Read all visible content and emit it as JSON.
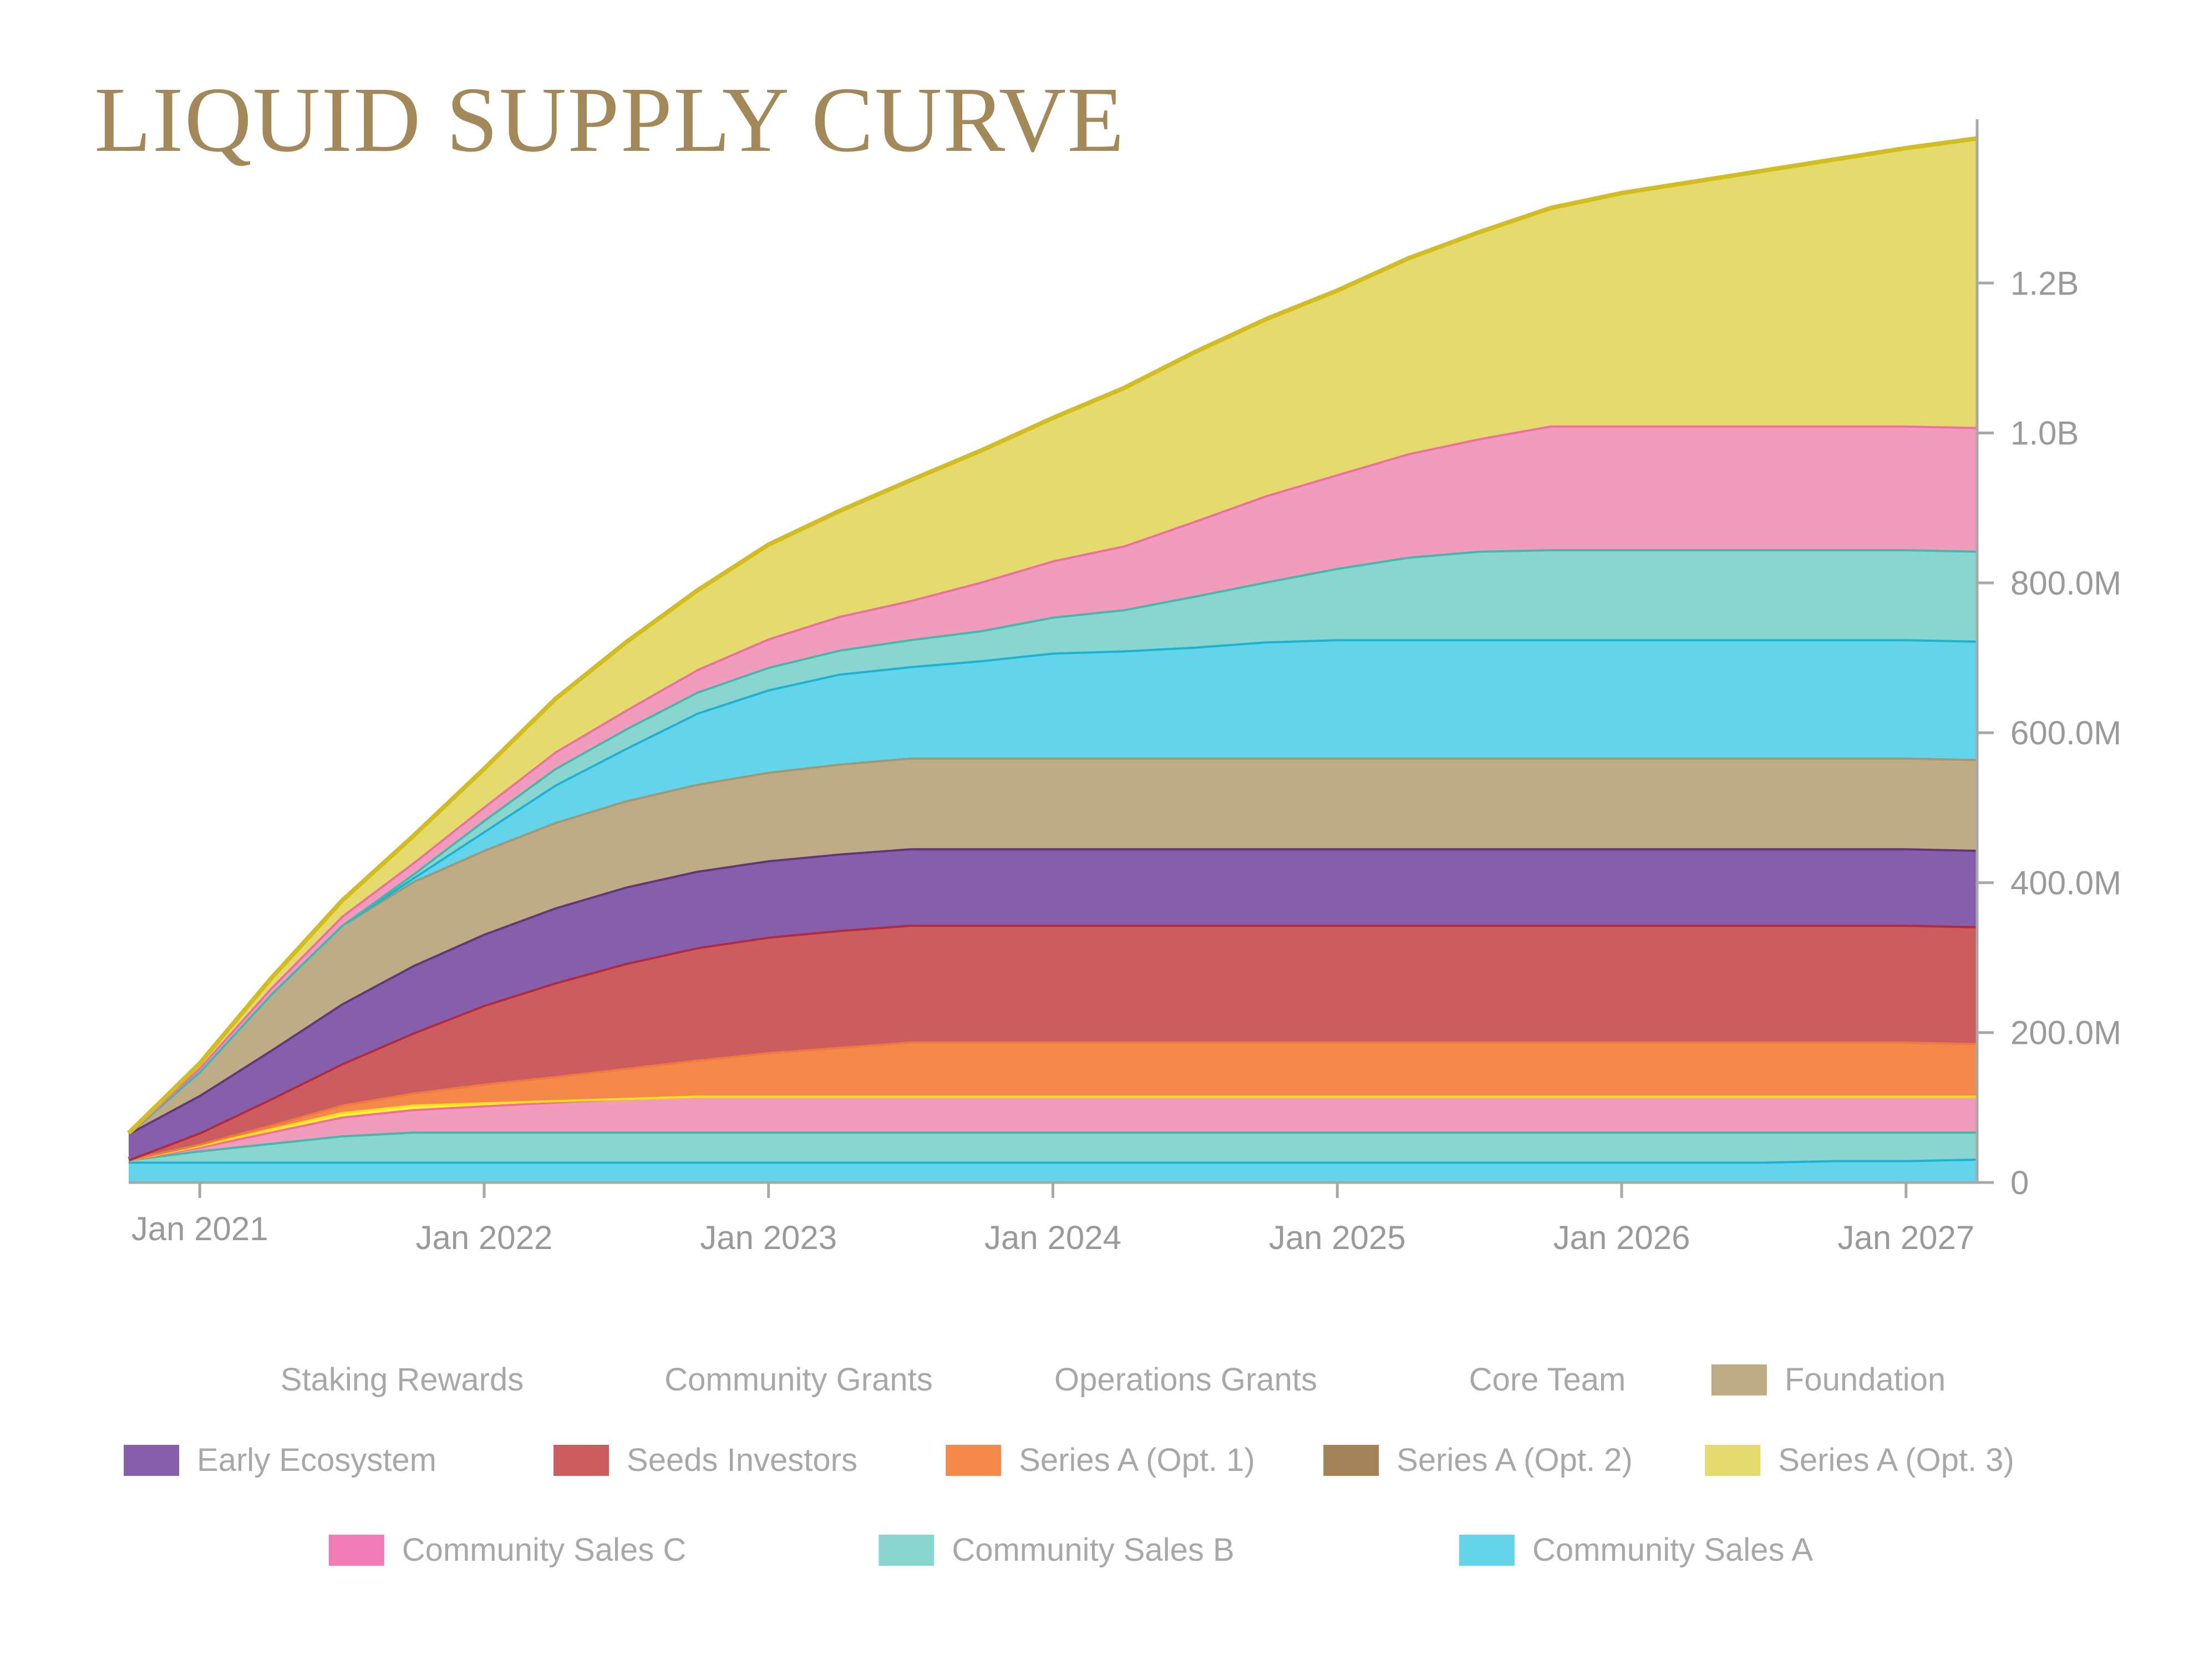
{
  "chart_data": {
    "type": "area",
    "stacked": true,
    "title": "LIQUID SUPPLY CURVE",
    "xlabel": "",
    "ylabel": "",
    "x_ticks": [
      "Jan 2021",
      "Jan 2022",
      "Jan 2023",
      "Jan 2024",
      "Jan 2025",
      "Jan 2026",
      "Jan 2027"
    ],
    "y_ticks": [
      "0",
      "200.0M",
      "400.0M",
      "600.0M",
      "800.0M",
      "1.0B",
      "1.2B"
    ],
    "ylim": [
      0,
      1400
    ],
    "y_unit": "M",
    "x": [
      "2020-10",
      "2021-01",
      "2021-04",
      "2021-07",
      "2021-10",
      "2022-01",
      "2022-04",
      "2022-07",
      "2022-10",
      "2023-01",
      "2023-04",
      "2023-07",
      "2023-10",
      "2024-01",
      "2024-04",
      "2024-07",
      "2024-10",
      "2025-01",
      "2025-04",
      "2025-07",
      "2025-10",
      "2026-01",
      "2026-04",
      "2026-07",
      "2026-10",
      "2027-01",
      "2027-04"
    ],
    "series": [
      {
        "name": "Community Sales A",
        "color": "#63d4ea",
        "line": "#1ab3d6",
        "values": [
          28,
          28,
          28,
          28,
          28,
          28,
          28,
          28,
          28,
          28,
          28,
          28,
          28,
          28,
          28,
          28,
          28,
          28,
          28,
          28,
          28,
          28,
          28,
          28,
          30,
          30,
          32
        ]
      },
      {
        "name": "Community Sales B",
        "color": "#8ad5cf",
        "line": "#3dbcae",
        "values": [
          3,
          15,
          25,
          35,
          40,
          40,
          40,
          40,
          40,
          40,
          40,
          40,
          40,
          40,
          40,
          40,
          40,
          40,
          40,
          40,
          40,
          40,
          40,
          40,
          38,
          38,
          36
        ]
      },
      {
        "name": "Community Sales C",
        "color": "#f29cbd",
        "line": "#ee6fa6",
        "values": [
          0,
          5,
          15,
          25,
          30,
          35,
          40,
          45,
          48,
          48,
          48,
          48,
          48,
          48,
          48,
          48,
          48,
          48,
          48,
          48,
          48,
          48,
          48,
          48,
          48,
          48,
          48
        ]
      },
      {
        "name": "Series A (Opt. 3)",
        "color": "#fff04d",
        "line": "#ffe414",
        "values": [
          0,
          2,
          4,
          6,
          6,
          4,
          2,
          0,
          0,
          0,
          0,
          0,
          0,
          0,
          0,
          0,
          0,
          0,
          0,
          0,
          0,
          0,
          0,
          0,
          0,
          0,
          0
        ]
      },
      {
        "name": "Series A (Opt. 1)",
        "color": "#f5894c",
        "line": "#f07a3a",
        "values": [
          0,
          2,
          5,
          10,
          16,
          25,
          32,
          40,
          48,
          58,
          65,
          72,
          72,
          72,
          72,
          72,
          72,
          72,
          72,
          72,
          72,
          72,
          72,
          72,
          72,
          72,
          70
        ]
      },
      {
        "name": "Seeds Investors",
        "color": "#cb5d61",
        "line": "#b52a36",
        "values": [
          0,
          15,
          35,
          55,
          80,
          105,
          125,
          140,
          150,
          154,
          156,
          156,
          156,
          156,
          156,
          156,
          156,
          156,
          156,
          156,
          156,
          156,
          156,
          156,
          156,
          156,
          156
        ]
      },
      {
        "name": "Early Ecosystem",
        "color": "#865fac",
        "line": "#64367f",
        "values": [
          35,
          50,
          65,
          80,
          90,
          95,
          100,
          102,
          102,
          102,
          102,
          102,
          102,
          102,
          102,
          102,
          102,
          102,
          102,
          102,
          102,
          102,
          102,
          102,
          102,
          102,
          102
        ]
      },
      {
        "name": "Foundation",
        "color": "#beac87",
        "line": "#a99670",
        "values": [
          0,
          32,
          75,
          105,
          112,
          112,
          114,
          115,
          116,
          118,
          120,
          121,
          121,
          121,
          121,
          121,
          121,
          121,
          121,
          121,
          121,
          121,
          121,
          121,
          121,
          121,
          121
        ]
      },
      {
        "name": "Community Sales A",
        "color": "#63d4ea",
        "line": "#1ab3d6",
        "values": [
          0,
          0,
          0,
          0,
          5,
          25,
          50,
          70,
          95,
          110,
          120,
          122,
          130,
          140,
          143,
          148,
          155,
          158,
          158,
          158,
          158,
          158,
          158,
          158,
          158,
          158,
          158
        ]
      },
      {
        "name": "Community Sales B",
        "color": "#8ad5cf",
        "line": "#3dbcae",
        "values": [
          0,
          0,
          0,
          0,
          5,
          15,
          22,
          26,
          28,
          30,
          32,
          36,
          40,
          48,
          55,
          68,
          80,
          95,
          110,
          118,
          120,
          120,
          120,
          120,
          120,
          120,
          120
        ]
      },
      {
        "name": "Community Sales C",
        "color": "#f29cbd",
        "line": "#ee6fa6",
        "values": [
          0,
          5,
          8,
          12,
          15,
          18,
          22,
          25,
          30,
          38,
          45,
          52,
          65,
          75,
          85,
          100,
          115,
          125,
          138,
          150,
          165,
          165,
          165,
          165,
          165,
          165,
          165
        ]
      },
      {
        "name": "Series A (Opt. 3)",
        "color": "#e4da6e",
        "line": "#d2bc1e",
        "values": [
          0,
          5,
          12,
          20,
          35,
          50,
          70,
          90,
          105,
          125,
          140,
          160,
          175,
          190,
          210,
          225,
          235,
          245,
          260,
          275,
          290,
          310,
          325,
          340,
          355,
          370,
          385
        ]
      }
    ]
  },
  "legend": {
    "items": [
      {
        "label": "Staking Rewards",
        "color": ""
      },
      {
        "label": "Community Grants",
        "color": ""
      },
      {
        "label": "Operations Grants",
        "color": ""
      },
      {
        "label": "Core Team",
        "color": ""
      },
      {
        "label": "Foundation",
        "color": "#beac87"
      },
      {
        "label": "Early Ecosystem",
        "color": "#865fac"
      },
      {
        "label": "Seeds Investors",
        "color": "#cb5d61"
      },
      {
        "label": "Series A (Opt. 1)",
        "color": "#f5894c"
      },
      {
        "label": "Series A (Opt. 2)",
        "color": "#a3845a"
      },
      {
        "label": "Series A (Opt. 3)",
        "color": "#e4da6e"
      },
      {
        "label": "Community Sales C",
        "color": "#f07cb6"
      },
      {
        "label": "Community Sales B",
        "color": "#8ad5cf"
      },
      {
        "label": "Community Sales A",
        "color": "#63d4ea"
      }
    ]
  }
}
